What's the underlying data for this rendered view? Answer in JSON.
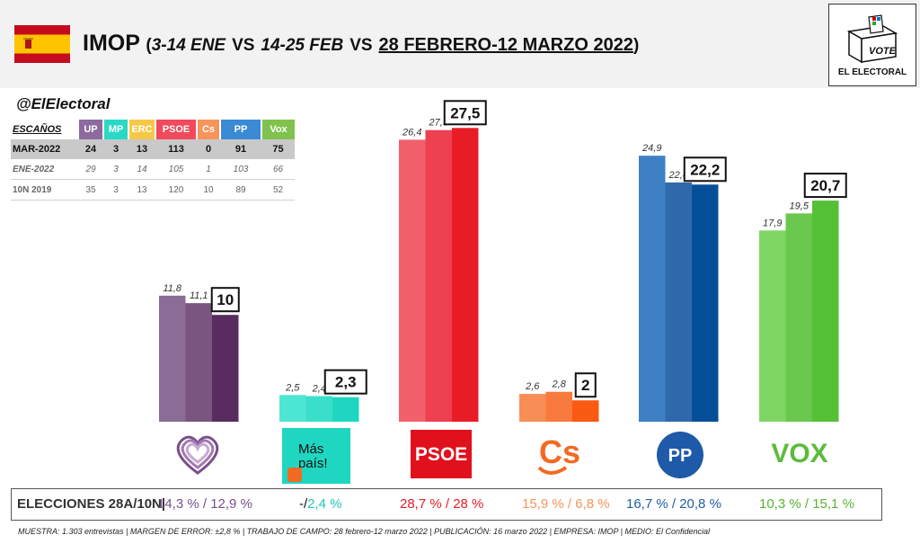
{
  "header": {
    "pollster": "IMOP",
    "paren_open": "(",
    "period1": "3-14 ENE",
    "vs1": "VS",
    "period2": "14-25 FEB",
    "vs2": "VS",
    "period3": "28 FEBRERO-12 MARZO 2022",
    "paren_close": ")",
    "logo_ballot_text": "VOTE",
    "logo_caption": "EL ELECTORAL"
  },
  "handle": "@ElElectoral",
  "seats_table": {
    "label": "ESCAÑOS",
    "parties": [
      {
        "name": "UP",
        "color": "#8d6a9f"
      },
      {
        "name": "MP",
        "color": "#2ad9c5"
      },
      {
        "name": "ERC",
        "color": "#f5c947"
      },
      {
        "name": "PSOE",
        "color": "#f04a5c"
      },
      {
        "name": "Cs",
        "color": "#f7945a"
      },
      {
        "name": "PP",
        "color": "#3b8ad4"
      },
      {
        "name": "Vox",
        "color": "#7fc24d"
      }
    ],
    "rows": [
      {
        "label": "MAR-2022",
        "values": [
          "24",
          "3",
          "13",
          "113",
          "0",
          "91",
          "75"
        ]
      },
      {
        "label": "ENE-2022",
        "values": [
          "29",
          "3",
          "14",
          "105",
          "1",
          "103",
          "66"
        ]
      },
      {
        "label": "10N 2019",
        "values": [
          "35",
          "3",
          "13",
          "120",
          "10",
          "89",
          "52"
        ]
      }
    ]
  },
  "chart_data": {
    "type": "bar",
    "categories": [
      "UP",
      "Más País",
      "PSOE",
      "Cs",
      "PP",
      "Vox"
    ],
    "series": [
      {
        "values": [
          11.8,
          2.5,
          26.4,
          2.6,
          24.9,
          17.9
        ]
      },
      {
        "values": [
          11.1,
          2.4,
          27.3,
          2.8,
          22.4,
          19.5
        ]
      },
      {
        "values": [
          10,
          2.3,
          27.5,
          2,
          22.2,
          20.7
        ]
      }
    ],
    "labels": [
      [
        "11,8",
        "11,1",
        "10"
      ],
      [
        "2,5",
        "2,4",
        "2,3"
      ],
      [
        "26,4",
        "27,3",
        "27,5"
      ],
      [
        "2,6",
        "2,8",
        "2"
      ],
      [
        "24,9",
        "22,4",
        "22,2"
      ],
      [
        "17,9",
        "19,5",
        "20,7"
      ]
    ],
    "colors": [
      [
        "#8b6c96",
        "#7a557f",
        "#582c5e"
      ],
      [
        "#4de6d3",
        "#3adfcb",
        "#1fd6c1"
      ],
      [
        "#f2606c",
        "#ee4050",
        "#e81c27"
      ],
      [
        "#f88d55",
        "#f87a3e",
        "#fb5a12"
      ],
      [
        "#3e80c4",
        "#2f69ac",
        "#054f99"
      ],
      [
        "#7fd664",
        "#6ac84e",
        "#55c036"
      ]
    ],
    "ylim": [
      0,
      30
    ]
  },
  "party_logos": {
    "mas_pais_text1": "Más",
    "mas_pais_text2": "país!",
    "psoe_text": "PSOE",
    "cs_text": "Cs",
    "pp_text": "PP",
    "vox_text": "VOX"
  },
  "results": {
    "label": "ELECCIONES 28A/10N|",
    "items": [
      {
        "text": "14,3 % / 12,9 %",
        "color": "#7a4f8b"
      },
      {
        "text": "2,4 %",
        "prefix": "-/",
        "color": "#1fc9b6"
      },
      {
        "text": "28,7  % / 28 %",
        "color": "#e81c27"
      },
      {
        "text": "15,9 % / 6,8 %",
        "color": "#f7945a"
      },
      {
        "text": "16,7 % / 20,8 %",
        "color": "#1f5ea8"
      },
      {
        "text": "10,3 % / 15,1 %",
        "color": "#55b531"
      }
    ]
  },
  "footer": "MUESTRA: 1.303 entrevistas | MARGEN DE ERROR: ±2,8 % | TRABAJO DE CAMPO: 28 febrero-12 marzo 2022  | PUBLICACIÓN: 16 marzo 2022 | EMPRESA: IMOP | MEDIO: El Confidencial"
}
